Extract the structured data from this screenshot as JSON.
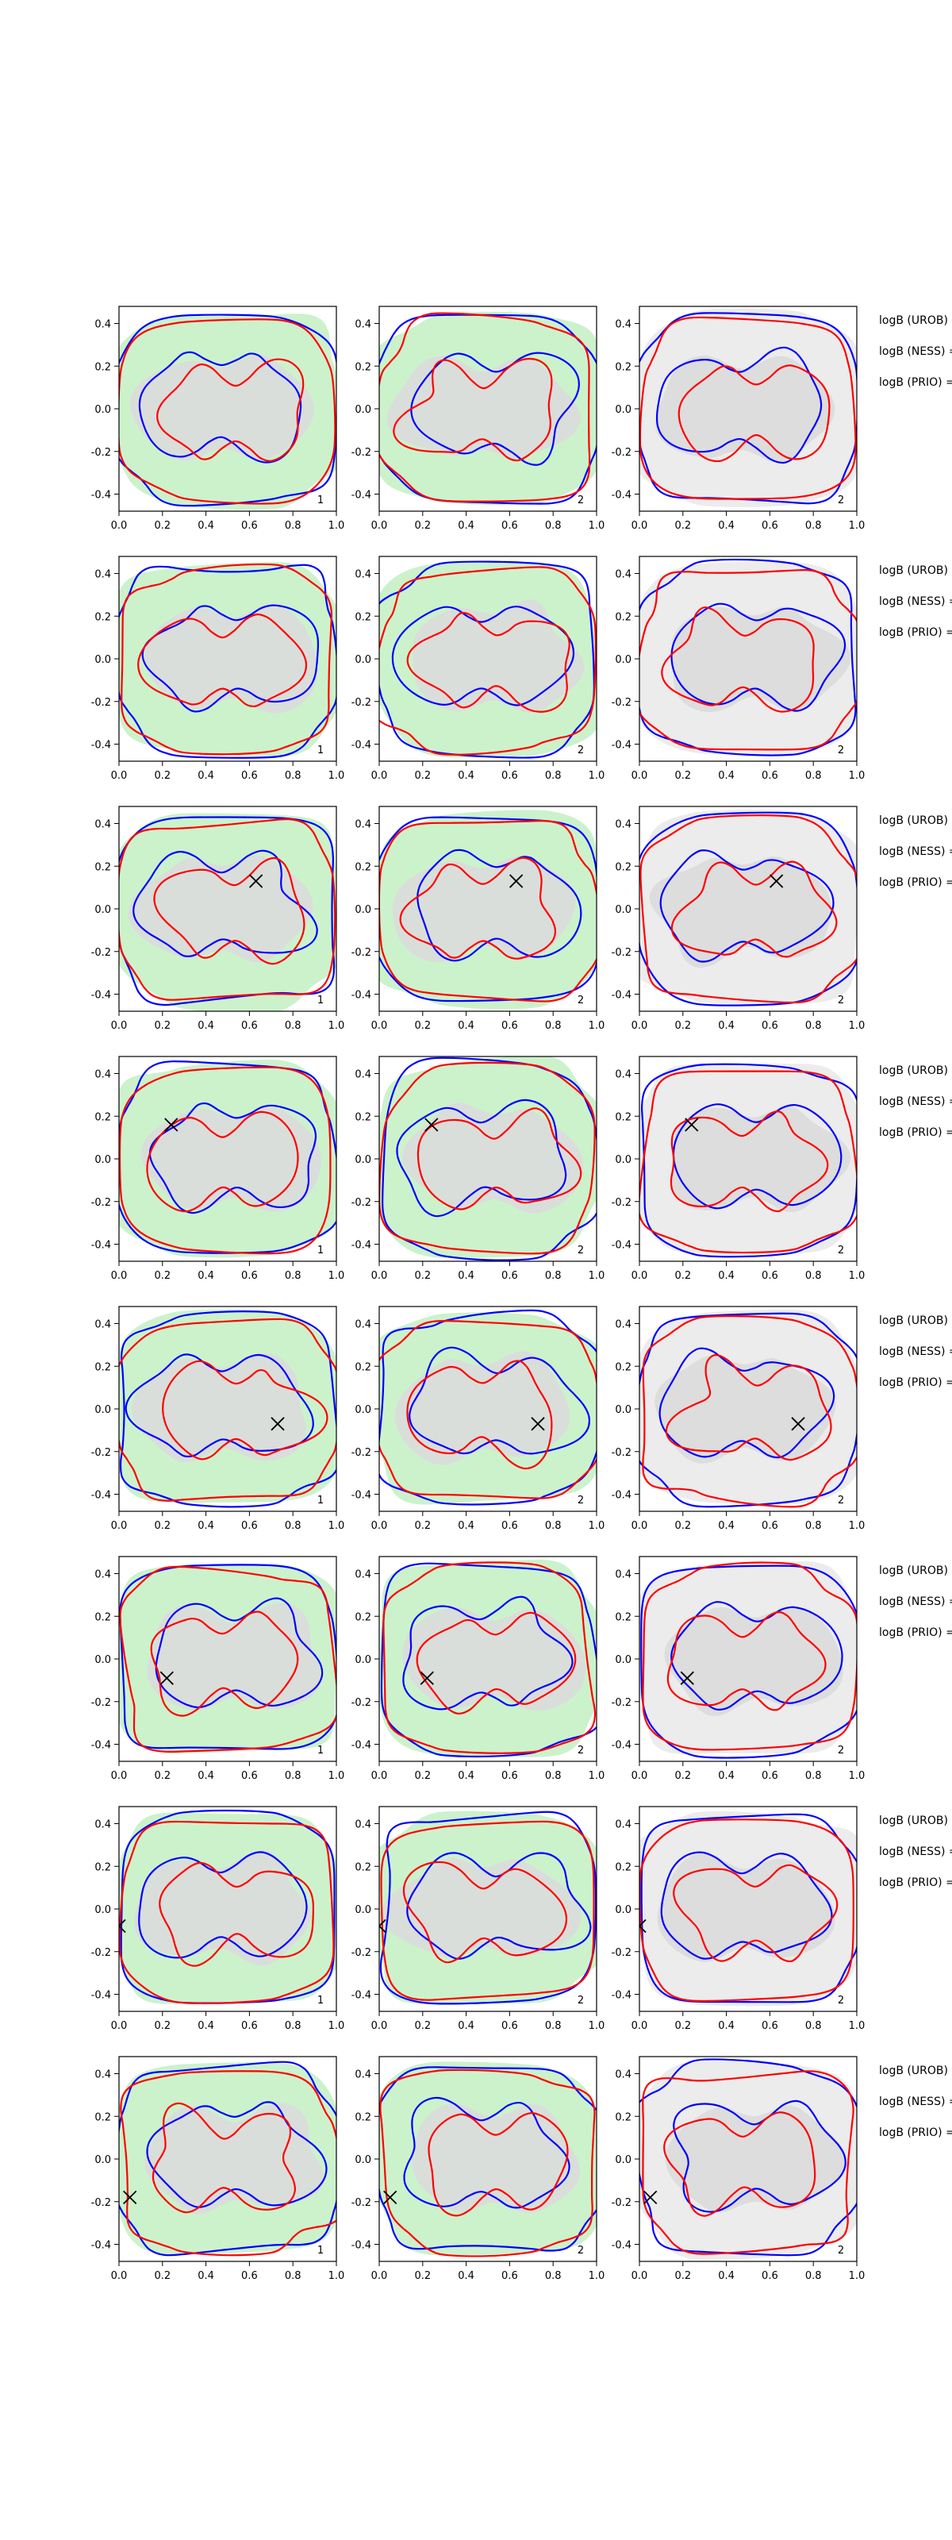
{
  "chart_data": {
    "type": "contour",
    "layout": {
      "rows": 8,
      "cols": 3
    },
    "xlim": [
      0.0,
      1.0
    ],
    "ylim": [
      -0.48,
      0.48
    ],
    "xticks": [
      0.0,
      0.2,
      0.4,
      0.6,
      0.8,
      1.0
    ],
    "xtick_labels": [
      "0.0",
      "0.2",
      "0.4",
      "0.6",
      "0.8",
      "1.0"
    ],
    "yticks": [
      -0.4,
      -0.2,
      0.0,
      0.2,
      0.4
    ],
    "ytick_labels": [
      "-0.4",
      "-0.2",
      "0.0",
      "0.2",
      "0.4"
    ],
    "panel_labels": [
      "1",
      "2",
      "2"
    ],
    "row_labels": [
      "logB (UROB) =",
      "logB (NESS) =",
      "logB (PRIO) ="
    ],
    "colors": {
      "blue": "#0000ff",
      "red": "#ff0000",
      "green_fill": "#ccf2cc",
      "gray_fill": "#dcdcdc",
      "light_gray_fill": "#ececec"
    },
    "rows": [
      {
        "marker": null
      },
      {
        "marker": null
      },
      {
        "marker": [
          0.63,
          0.13
        ]
      },
      {
        "marker": [
          0.24,
          0.16
        ]
      },
      {
        "marker": [
          0.73,
          -0.07
        ]
      },
      {
        "marker": [
          0.22,
          -0.09
        ]
      },
      {
        "marker": [
          0.0,
          -0.08
        ]
      },
      {
        "marker": [
          0.05,
          -0.18
        ]
      }
    ],
    "legend": "none"
  }
}
